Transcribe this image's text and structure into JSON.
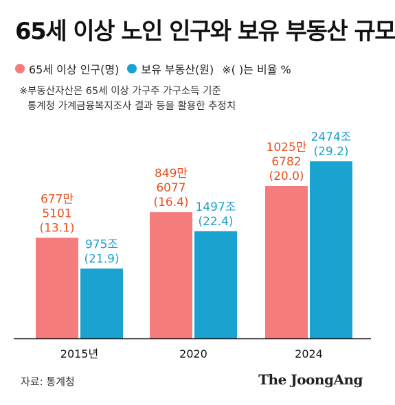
{
  "title": "65세 이상 노인 인구와 보유 부동산 규모",
  "legend": {
    "items": [
      {
        "label": "65세 이상 인구(명)",
        "color": "#f47c7c"
      },
      {
        "label": "보유 부동산(원)",
        "color": "#1aa3d1"
      }
    ],
    "note": "※( )는 비율 %"
  },
  "footnote": {
    "line1": "※부동산자산은 65세 이상 가구주 가구소득 기준",
    "line2": "통계청 가계금융복지조사 결과 등을 활용한 추정치"
  },
  "source": "자료: 통계청",
  "brand": "The JoongAng",
  "chart_data": {
    "type": "bar",
    "categories": [
      "2015년",
      "2020",
      "2024"
    ],
    "series": [
      {
        "name": "65세 이상 인구(명)",
        "color": "#f47c7c",
        "label_color": "#e8511e",
        "values": [
          6775101,
          8496077,
          10256782
        ],
        "percent": [
          13.1,
          16.4,
          20.0
        ],
        "labels": [
          [
            "677만",
            "5101",
            "(13.1)"
          ],
          [
            "849만",
            "6077",
            "(16.4)"
          ],
          [
            "1025만",
            "6782",
            "(20.0)"
          ]
        ]
      },
      {
        "name": "보유 부동산(원)",
        "color": "#1aa3d1",
        "label_color": "#1a9fd0",
        "values": [
          975,
          1497,
          2474
        ],
        "percent": [
          21.9,
          22.4,
          29.2
        ],
        "labels": [
          [
            "975조",
            "(21.9)"
          ],
          [
            "1497조",
            "(22.4)"
          ],
          [
            "2474조",
            "(29.2)"
          ]
        ]
      }
    ],
    "axis_color": "#111111"
  }
}
